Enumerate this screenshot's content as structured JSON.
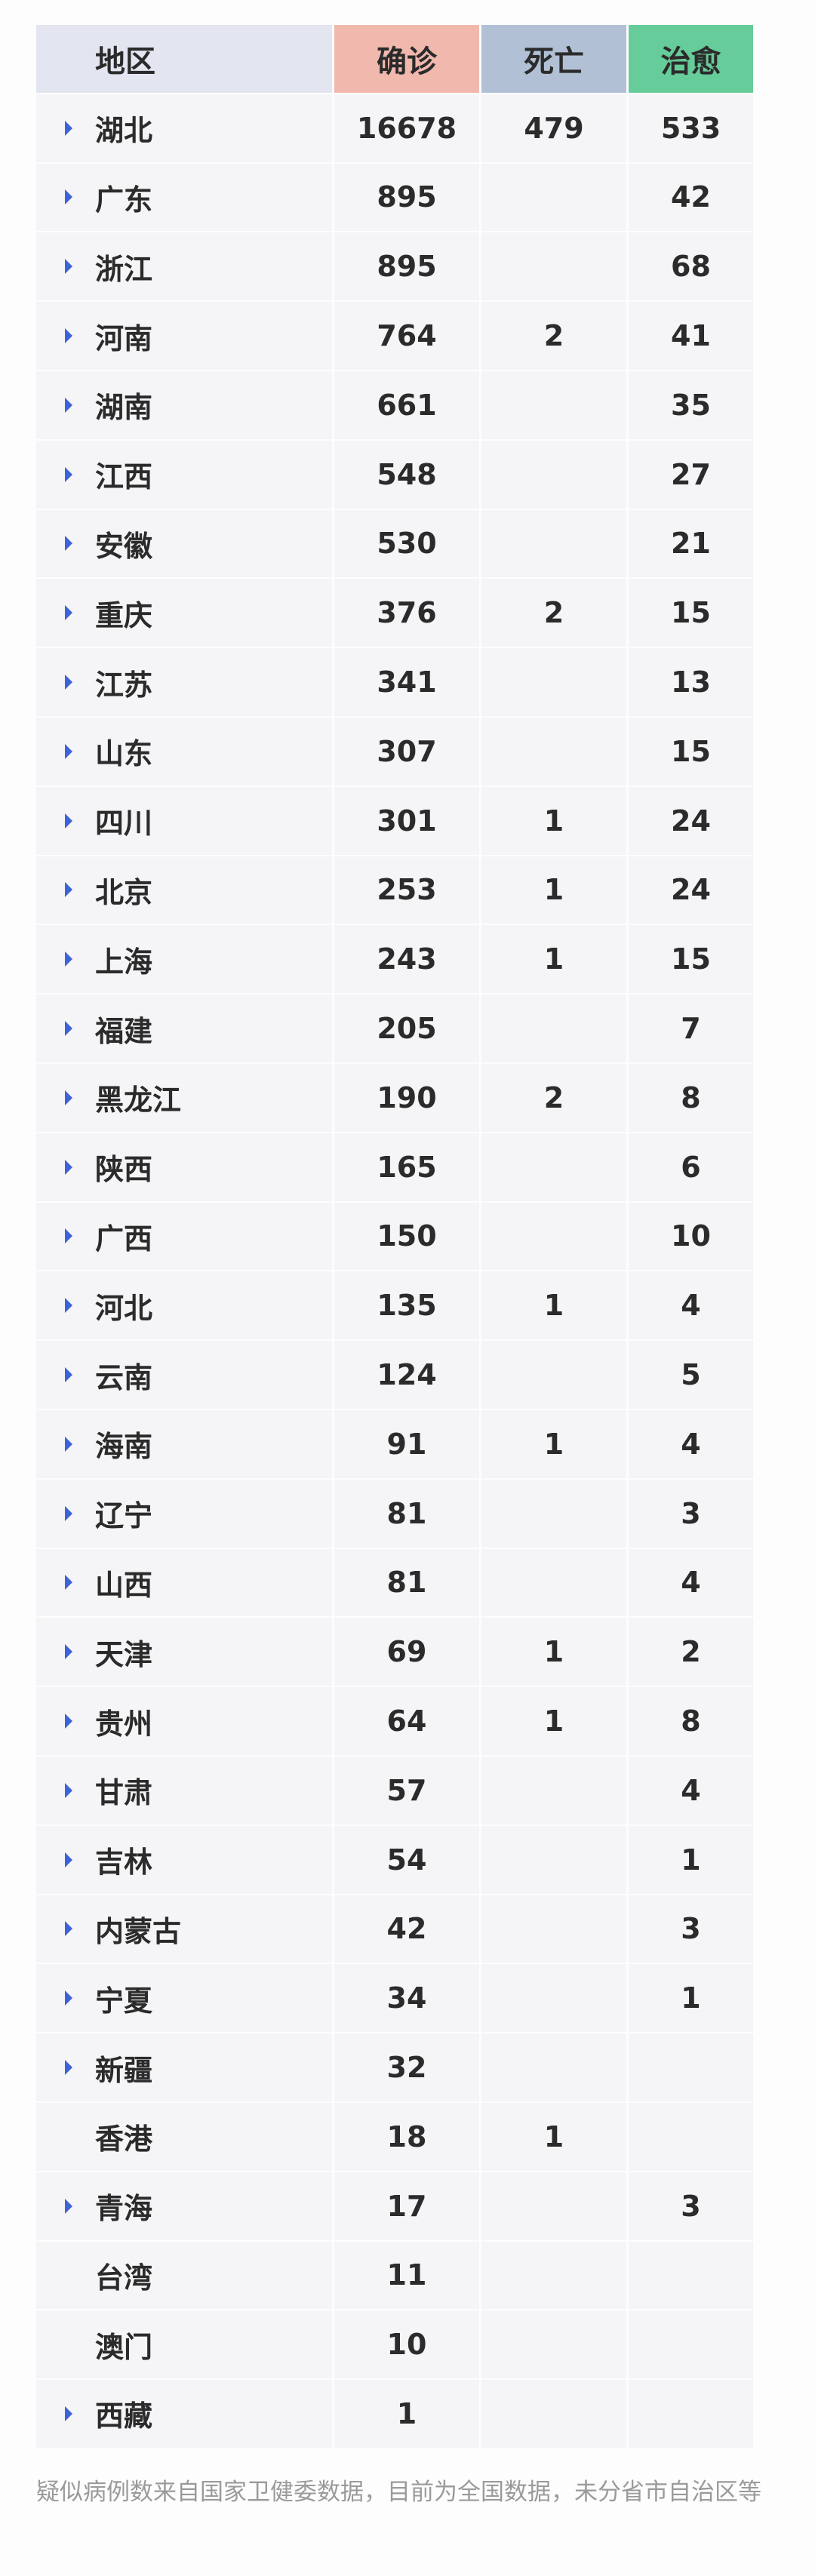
{
  "header": {
    "region": "地区",
    "confirmed": "确诊",
    "deaths": "死亡",
    "cured": "治愈",
    "colors": {
      "region": "#e3e6f1",
      "confirmed": "#f1b8ad",
      "deaths": "#b2c0d6",
      "cured": "#66cc99"
    }
  },
  "rows": [
    {
      "region": "湖北",
      "confirmed": "16678",
      "deaths": "479",
      "cured": "533",
      "expandable": true
    },
    {
      "region": "广东",
      "confirmed": "895",
      "deaths": "",
      "cured": "42",
      "expandable": true
    },
    {
      "region": "浙江",
      "confirmed": "895",
      "deaths": "",
      "cured": "68",
      "expandable": true
    },
    {
      "region": "河南",
      "confirmed": "764",
      "deaths": "2",
      "cured": "41",
      "expandable": true
    },
    {
      "region": "湖南",
      "confirmed": "661",
      "deaths": "",
      "cured": "35",
      "expandable": true
    },
    {
      "region": "江西",
      "confirmed": "548",
      "deaths": "",
      "cured": "27",
      "expandable": true
    },
    {
      "region": "安徽",
      "confirmed": "530",
      "deaths": "",
      "cured": "21",
      "expandable": true
    },
    {
      "region": "重庆",
      "confirmed": "376",
      "deaths": "2",
      "cured": "15",
      "expandable": true
    },
    {
      "region": "江苏",
      "confirmed": "341",
      "deaths": "",
      "cured": "13",
      "expandable": true
    },
    {
      "region": "山东",
      "confirmed": "307",
      "deaths": "",
      "cured": "15",
      "expandable": true
    },
    {
      "region": "四川",
      "confirmed": "301",
      "deaths": "1",
      "cured": "24",
      "expandable": true
    },
    {
      "region": "北京",
      "confirmed": "253",
      "deaths": "1",
      "cured": "24",
      "expandable": true
    },
    {
      "region": "上海",
      "confirmed": "243",
      "deaths": "1",
      "cured": "15",
      "expandable": true
    },
    {
      "region": "福建",
      "confirmed": "205",
      "deaths": "",
      "cured": "7",
      "expandable": true
    },
    {
      "region": "黑龙江",
      "confirmed": "190",
      "deaths": "2",
      "cured": "8",
      "expandable": true
    },
    {
      "region": "陕西",
      "confirmed": "165",
      "deaths": "",
      "cured": "6",
      "expandable": true
    },
    {
      "region": "广西",
      "confirmed": "150",
      "deaths": "",
      "cured": "10",
      "expandable": true
    },
    {
      "region": "河北",
      "confirmed": "135",
      "deaths": "1",
      "cured": "4",
      "expandable": true
    },
    {
      "region": "云南",
      "confirmed": "124",
      "deaths": "",
      "cured": "5",
      "expandable": true
    },
    {
      "region": "海南",
      "confirmed": "91",
      "deaths": "1",
      "cured": "4",
      "expandable": true
    },
    {
      "region": "辽宁",
      "confirmed": "81",
      "deaths": "",
      "cured": "3",
      "expandable": true
    },
    {
      "region": "山西",
      "confirmed": "81",
      "deaths": "",
      "cured": "4",
      "expandable": true
    },
    {
      "region": "天津",
      "confirmed": "69",
      "deaths": "1",
      "cured": "2",
      "expandable": true
    },
    {
      "region": "贵州",
      "confirmed": "64",
      "deaths": "1",
      "cured": "8",
      "expandable": true
    },
    {
      "region": "甘肃",
      "confirmed": "57",
      "deaths": "",
      "cured": "4",
      "expandable": true
    },
    {
      "region": "吉林",
      "confirmed": "54",
      "deaths": "",
      "cured": "1",
      "expandable": true
    },
    {
      "region": "内蒙古",
      "confirmed": "42",
      "deaths": "",
      "cured": "3",
      "expandable": true
    },
    {
      "region": "宁夏",
      "confirmed": "34",
      "deaths": "",
      "cured": "1",
      "expandable": true
    },
    {
      "region": "新疆",
      "confirmed": "32",
      "deaths": "",
      "cured": "",
      "expandable": true
    },
    {
      "region": "香港",
      "confirmed": "18",
      "deaths": "1",
      "cured": "",
      "expandable": false
    },
    {
      "region": "青海",
      "confirmed": "17",
      "deaths": "",
      "cured": "3",
      "expandable": true
    },
    {
      "region": "台湾",
      "confirmed": "11",
      "deaths": "",
      "cured": "",
      "expandable": false
    },
    {
      "region": "澳门",
      "confirmed": "10",
      "deaths": "",
      "cured": "",
      "expandable": false
    },
    {
      "region": "西藏",
      "confirmed": "1",
      "deaths": "",
      "cured": "",
      "expandable": true
    }
  ],
  "footer": "疑似病例数来自国家卫健委数据，目前为全国数据，未分省市自治区等"
}
